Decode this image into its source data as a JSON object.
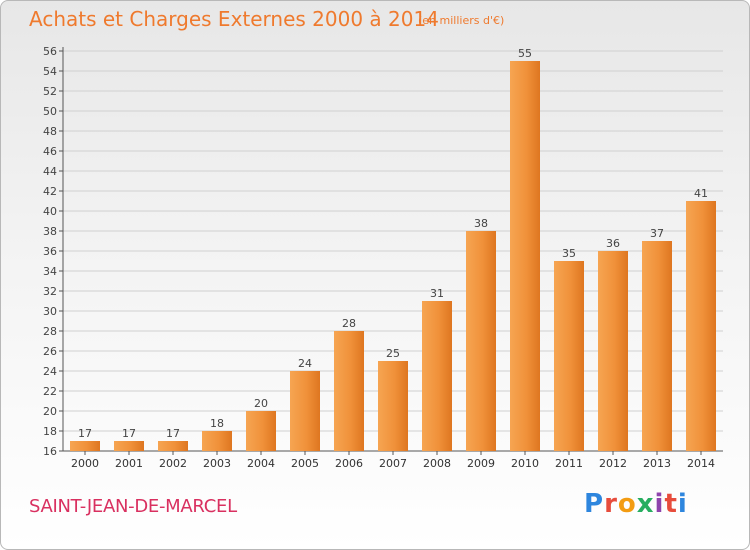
{
  "title": "Achats et Charges Externes 2000 à 2014",
  "subtitle": "(en milliers d'€)",
  "commune": "SAINT-JEAN-DE-MARCEL",
  "logo": {
    "text": "Proxiti",
    "letters": [
      {
        "ch": "P",
        "color": "#2e86de"
      },
      {
        "ch": "r",
        "color": "#e74c3c"
      },
      {
        "ch": "o",
        "color": "#f39c12"
      },
      {
        "ch": "x",
        "color": "#27ae60"
      },
      {
        "ch": "i",
        "color": "#8e44ad"
      },
      {
        "ch": "t",
        "color": "#e74c3c"
      },
      {
        "ch": "i",
        "color": "#2e86de"
      }
    ]
  },
  "colors": {
    "bar": "#f0913a",
    "bar_light": "#f6a552",
    "bar_dark": "#e07a22",
    "axis": "#555555",
    "grid": "#d0d0d0"
  },
  "chart_data": {
    "type": "bar",
    "categories": [
      "2000",
      "2001",
      "2002",
      "2003",
      "2004",
      "2005",
      "2006",
      "2007",
      "2008",
      "2009",
      "2010",
      "2011",
      "2012",
      "2013",
      "2014"
    ],
    "values": [
      17,
      17,
      17,
      18,
      20,
      24,
      28,
      25,
      31,
      38,
      55,
      35,
      36,
      37,
      41
    ],
    "ylim": [
      16,
      56
    ],
    "yticks": [
      16,
      18,
      20,
      22,
      24,
      26,
      28,
      30,
      32,
      34,
      36,
      38,
      40,
      42,
      44,
      46,
      48,
      50,
      52,
      54,
      56
    ],
    "grid": true,
    "legend": "none"
  }
}
